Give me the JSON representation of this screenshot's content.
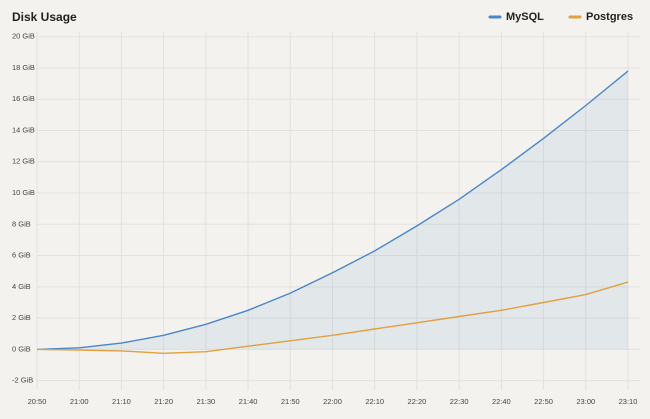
{
  "chart_data": {
    "type": "line",
    "title": "Disk Usage",
    "categories": [
      "20:50",
      "21:00",
      "21:10",
      "21:20",
      "21:30",
      "21:40",
      "21:50",
      "22:00",
      "22:10",
      "22:20",
      "22:30",
      "22:40",
      "22:50",
      "23:00",
      "23:10"
    ],
    "series": [
      {
        "name": "MySQL",
        "color": "#4a86c8",
        "values": [
          0,
          0.1,
          0.4,
          0.9,
          1.6,
          2.5,
          3.6,
          4.9,
          6.3,
          7.9,
          9.6,
          11.5,
          13.5,
          15.6,
          17.8
        ]
      },
      {
        "name": "Postgres",
        "color": "#e0a040",
        "values": [
          0,
          -0.05,
          -0.1,
          -0.25,
          -0.15,
          0.2,
          0.55,
          0.9,
          1.3,
          1.7,
          2.1,
          2.5,
          3.0,
          3.5,
          4.3
        ]
      }
    ],
    "ylim": [
      -2.6,
      20.3
    ],
    "yticks": [
      {
        "value": -2,
        "label": "-2 GiB"
      },
      {
        "value": 0,
        "label": "0 GiB"
      },
      {
        "value": 2,
        "label": "2 GiB"
      },
      {
        "value": 4,
        "label": "4 GiB"
      },
      {
        "value": 6,
        "label": "6 GiB"
      },
      {
        "value": 8,
        "label": "8 GiB"
      },
      {
        "value": 10,
        "label": "10 GiB"
      },
      {
        "value": 12,
        "label": "12 GiB"
      },
      {
        "value": 14,
        "label": "14 GiB"
      },
      {
        "value": 16,
        "label": "16 GiB"
      },
      {
        "value": 18,
        "label": "18 GiB"
      },
      {
        "value": 20,
        "label": "20 GiB"
      }
    ],
    "grid": true,
    "legend": "top-right"
  }
}
